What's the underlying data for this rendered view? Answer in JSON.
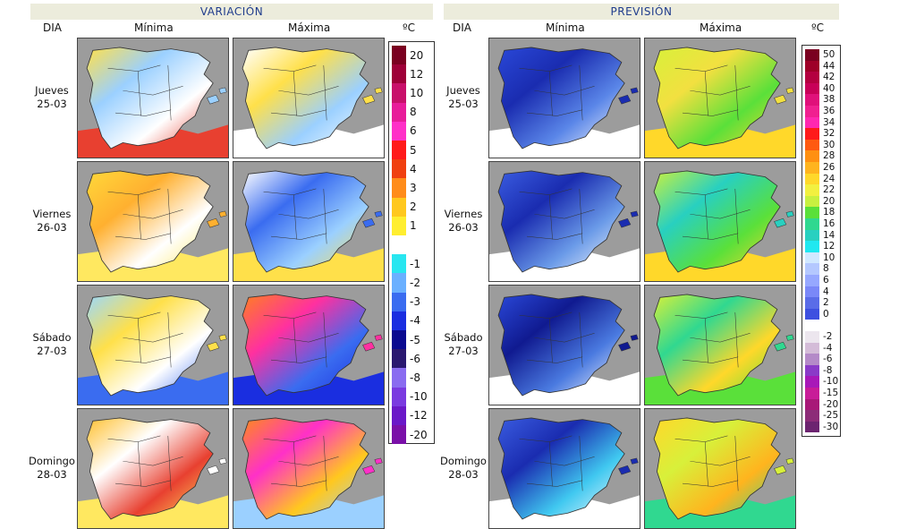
{
  "variacion": {
    "title": "VARIACIÓN",
    "col_dia": "DIA",
    "col_min": "Mínima",
    "col_max": "Máxima",
    "unit": "ºC",
    "legend": [
      {
        "label": "20",
        "color": "#7a0020"
      },
      {
        "label": "12",
        "color": "#9e0038"
      },
      {
        "label": "10",
        "color": "#c8106a"
      },
      {
        "label": "8",
        "color": "#e81c9a"
      },
      {
        "label": "6",
        "color": "#ff30c8"
      },
      {
        "label": "5",
        "color": "#ff1a1a"
      },
      {
        "label": "4",
        "color": "#f04010"
      },
      {
        "label": "3",
        "color": "#ff8c1a"
      },
      {
        "label": "2",
        "color": "#ffc81e"
      },
      {
        "label": "1",
        "color": "#ffee30"
      },
      {
        "label": "",
        "color": "#ffffff"
      },
      {
        "label": "-1",
        "color": "#28e6f0"
      },
      {
        "label": "-2",
        "color": "#6ab0ff"
      },
      {
        "label": "-3",
        "color": "#3a6cf0"
      },
      {
        "label": "-4",
        "color": "#1a2ee0"
      },
      {
        "label": "-5",
        "color": "#0a0a90"
      },
      {
        "label": "-6",
        "color": "#2a1870"
      },
      {
        "label": "-8",
        "color": "#8a6cf0"
      },
      {
        "label": "-10",
        "color": "#7a3ae0"
      },
      {
        "label": "-12",
        "color": "#6a18c8"
      },
      {
        "label": "-20",
        "color": "#7a10a8"
      }
    ]
  },
  "prevision": {
    "title": "PREVISIÓN",
    "col_dia": "DIA",
    "col_min": "Mínima",
    "col_max": "Máxima",
    "unit": "ºC",
    "legend": [
      {
        "label": "50",
        "color": "#7a0020"
      },
      {
        "label": "44",
        "color": "#9e0028"
      },
      {
        "label": "42",
        "color": "#b40040"
      },
      {
        "label": "40",
        "color": "#c80058"
      },
      {
        "label": "38",
        "color": "#e0107a"
      },
      {
        "label": "36",
        "color": "#f02090"
      },
      {
        "label": "34",
        "color": "#ff28b0"
      },
      {
        "label": "32",
        "color": "#ff1a1a"
      },
      {
        "label": "30",
        "color": "#ff5a10"
      },
      {
        "label": "28",
        "color": "#ff9010"
      },
      {
        "label": "26",
        "color": "#ffb41e"
      },
      {
        "label": "24",
        "color": "#ffd82a"
      },
      {
        "label": "22",
        "color": "#f2f040"
      },
      {
        "label": "20",
        "color": "#c8f040"
      },
      {
        "label": "18",
        "color": "#5ae03a"
      },
      {
        "label": "16",
        "color": "#30d890"
      },
      {
        "label": "14",
        "color": "#28d0c0"
      },
      {
        "label": "12",
        "color": "#20e8f0"
      },
      {
        "label": "10",
        "color": "#d0e8ff"
      },
      {
        "label": "8",
        "color": "#b4c8ff"
      },
      {
        "label": "6",
        "color": "#96a8ff"
      },
      {
        "label": "4",
        "color": "#7a88f8"
      },
      {
        "label": "2",
        "color": "#5a6ce8"
      },
      {
        "label": "0",
        "color": "#3e50e0"
      },
      {
        "label": "",
        "color": "#ffffff"
      },
      {
        "label": "-2",
        "color": "#ece6ee"
      },
      {
        "label": "-4",
        "color": "#d4bcd8"
      },
      {
        "label": "-6",
        "color": "#b48ac8"
      },
      {
        "label": "-8",
        "color": "#8a3ac8"
      },
      {
        "label": "-10",
        "color": "#a818b8"
      },
      {
        "label": "-15",
        "color": "#c81c98"
      },
      {
        "label": "-20",
        "color": "#a81878"
      },
      {
        "label": "-25",
        "color": "#8c2c78"
      },
      {
        "label": "-30",
        "color": "#6c2470"
      }
    ]
  },
  "days": [
    {
      "name": "Jueves",
      "date": "25-03"
    },
    {
      "name": "Viernes",
      "date": "26-03"
    },
    {
      "name": "Sábado",
      "date": "27-03"
    },
    {
      "name": "Domingo",
      "date": "28-03"
    }
  ],
  "map_colors": {
    "var_min": [
      [
        "#ffe04a",
        "#9bd0ff",
        "#ffffff",
        "#e84030"
      ],
      [
        "#ffd83a",
        "#ffb030",
        "#ffffff",
        "#ffe860"
      ],
      [
        "#9ad8ff",
        "#ffe04a",
        "#ffffff",
        "#3a6cf0"
      ],
      [
        "#ffc030",
        "#ffffff",
        "#e84030",
        "#ffe860"
      ]
    ],
    "var_max": [
      [
        "#ffffff",
        "#ffe04a",
        "#9bd0ff",
        "#ffffff"
      ],
      [
        "#ffffff",
        "#3a6cf0",
        "#9bd0ff",
        "#ffe04a"
      ],
      [
        "#ff8020",
        "#ff30a0",
        "#3a6cf0",
        "#1a2ee0"
      ],
      [
        "#ff8c1a",
        "#ff30c8",
        "#ffc81e",
        "#9bd0ff"
      ]
    ],
    "prev_min": [
      [
        "#2a48d8",
        "#1a2cb0",
        "#5a86e8",
        "#ffffff"
      ],
      [
        "#3a5ce0",
        "#1a2cb0",
        "#6a9ae8",
        "#ffffff"
      ],
      [
        "#2a48d8",
        "#101a90",
        "#4a7ae0",
        "#ffffff"
      ],
      [
        "#3a5ce0",
        "#1a2cb0",
        "#40c8f0",
        "#ffffff"
      ]
    ],
    "prev_max": [
      [
        "#d8f03a",
        "#f2e040",
        "#5ae03a",
        "#ffd82a"
      ],
      [
        "#c8f040",
        "#28d0c0",
        "#5ae03a",
        "#ffd82a"
      ],
      [
        "#d8f03a",
        "#30d890",
        "#ffd82a",
        "#5ae03a"
      ],
      [
        "#ffd82a",
        "#d8f03a",
        "#ffb41e",
        "#30d890"
      ]
    ]
  }
}
